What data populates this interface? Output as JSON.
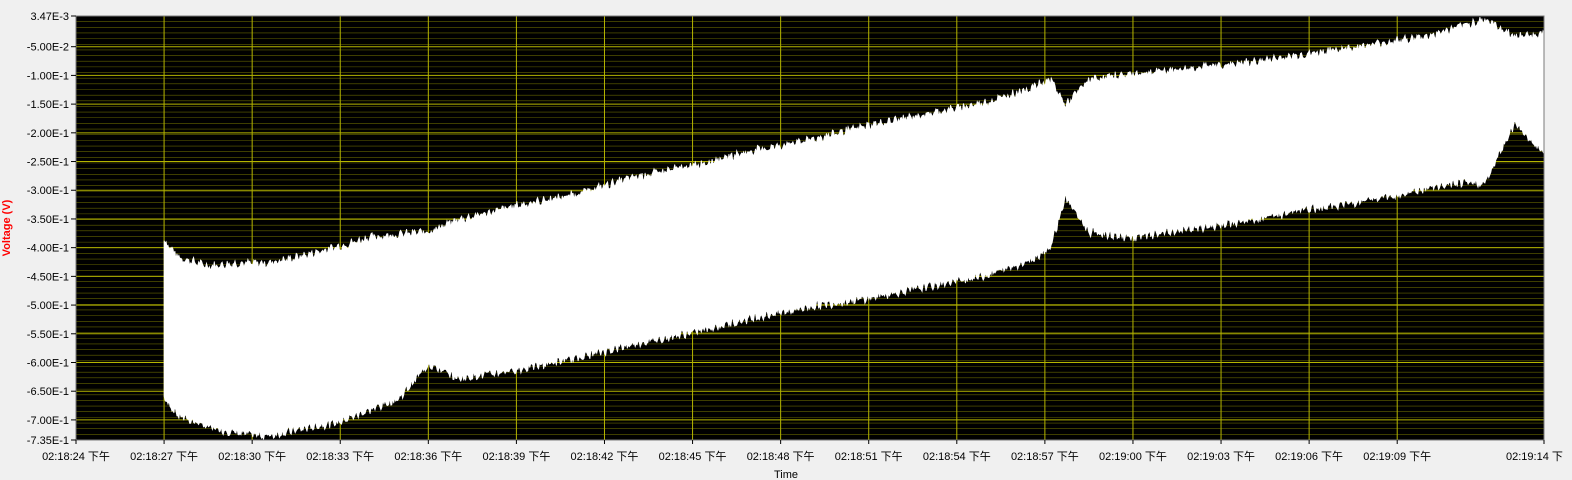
{
  "chart_data": {
    "type": "area",
    "title": "",
    "xlabel": "Time",
    "ylabel": "Voltage (V)",
    "ylim": [
      -0.735,
      0.00347
    ],
    "grid": true,
    "colors": {
      "plot_background": "#000000",
      "grid": "#b5b500",
      "signal": "#ffffff",
      "ylabel": "#ff0000",
      "frame": "#f0f0f0"
    },
    "y_ticks": [
      {
        "value": 0.00347,
        "label": "3.47E-3"
      },
      {
        "value": -0.05,
        "label": "-5.00E-2"
      },
      {
        "value": -0.1,
        "label": "-1.00E-1"
      },
      {
        "value": -0.15,
        "label": "-1.50E-1"
      },
      {
        "value": -0.2,
        "label": "-2.00E-1"
      },
      {
        "value": -0.25,
        "label": "-2.50E-1"
      },
      {
        "value": -0.3,
        "label": "-3.00E-1"
      },
      {
        "value": -0.35,
        "label": "-3.50E-1"
      },
      {
        "value": -0.4,
        "label": "-4.00E-1"
      },
      {
        "value": -0.45,
        "label": "-4.50E-1"
      },
      {
        "value": -0.5,
        "label": "-5.00E-1"
      },
      {
        "value": -0.55,
        "label": "-5.50E-1"
      },
      {
        "value": -0.6,
        "label": "-6.00E-1"
      },
      {
        "value": -0.65,
        "label": "-6.50E-1"
      },
      {
        "value": -0.7,
        "label": "-7.00E-1"
      },
      {
        "value": -0.735,
        "label": "-7.35E-1"
      }
    ],
    "x_ticks": [
      {
        "value": "02:18:24",
        "label": "02:18:24 下午"
      },
      {
        "value": "02:18:27",
        "label": "02:18:27 下午"
      },
      {
        "value": "02:18:30",
        "label": "02:18:30 下午"
      },
      {
        "value": "02:18:33",
        "label": "02:18:33 下午"
      },
      {
        "value": "02:18:36",
        "label": "02:18:36 下午"
      },
      {
        "value": "02:18:39",
        "label": "02:18:39 下午"
      },
      {
        "value": "02:18:42",
        "label": "02:18:42 下午"
      },
      {
        "value": "02:18:45",
        "label": "02:18:45 下午"
      },
      {
        "value": "02:18:48",
        "label": "02:18:48 下午"
      },
      {
        "value": "02:18:51",
        "label": "02:18:51 下午"
      },
      {
        "value": "02:18:54",
        "label": "02:18:54 下午"
      },
      {
        "value": "02:18:57",
        "label": "02:18:57 下午"
      },
      {
        "value": "02:19:00",
        "label": "02:19:00 下午"
      },
      {
        "value": "02:19:03",
        "label": "02:19:03 下午"
      },
      {
        "value": "02:19:06",
        "label": "02:19:06 下午"
      },
      {
        "value": "02:19:09",
        "label": "02:19:09 下午"
      },
      {
        "value": "02:19:14",
        "label": "02:19:14 下"
      }
    ],
    "x_range": [
      "02:18:24",
      "02:19:14"
    ],
    "series": [
      {
        "kind": "envelope",
        "x": [
          "02:18:27.0",
          "02:18:27.5",
          "02:18:28.5",
          "02:18:29.5",
          "02:18:30.5",
          "02:18:31.5",
          "02:18:33.0",
          "02:18:34.0",
          "02:18:35.0",
          "02:18:36.0",
          "02:18:37.0",
          "02:18:39.0",
          "02:18:41.0",
          "02:18:43.0",
          "02:18:45.0",
          "02:18:47.0",
          "02:18:49.0",
          "02:18:51.0",
          "02:18:53.0",
          "02:18:55.0",
          "02:18:56.5",
          "02:18:57.2",
          "02:18:57.7",
          "02:18:58.5",
          "02:19:00.0",
          "02:19:02.0",
          "02:19:04.0",
          "02:19:06.0",
          "02:19:08.0",
          "02:19:10.0",
          "02:19:11.0",
          "02:19:12.0",
          "02:19:13.0",
          "02:19:14.0"
        ],
        "upper": [
          -0.39,
          -0.42,
          -0.435,
          -0.43,
          -0.43,
          -0.42,
          -0.4,
          -0.385,
          -0.38,
          -0.375,
          -0.355,
          -0.33,
          -0.31,
          -0.28,
          -0.26,
          -0.235,
          -0.215,
          -0.19,
          -0.17,
          -0.15,
          -0.125,
          -0.11,
          -0.155,
          -0.11,
          -0.1,
          -0.09,
          -0.08,
          -0.065,
          -0.05,
          -0.035,
          -0.02,
          -0.005,
          -0.035,
          -0.03
        ],
        "lower": [
          -0.66,
          -0.69,
          -0.71,
          -0.72,
          -0.725,
          -0.715,
          -0.7,
          -0.68,
          -0.66,
          -0.6,
          -0.625,
          -0.61,
          -0.59,
          -0.565,
          -0.545,
          -0.52,
          -0.5,
          -0.485,
          -0.465,
          -0.445,
          -0.42,
          -0.395,
          -0.31,
          -0.37,
          -0.38,
          -0.365,
          -0.35,
          -0.33,
          -0.315,
          -0.295,
          -0.285,
          -0.285,
          -0.18,
          -0.235
        ]
      }
    ]
  }
}
